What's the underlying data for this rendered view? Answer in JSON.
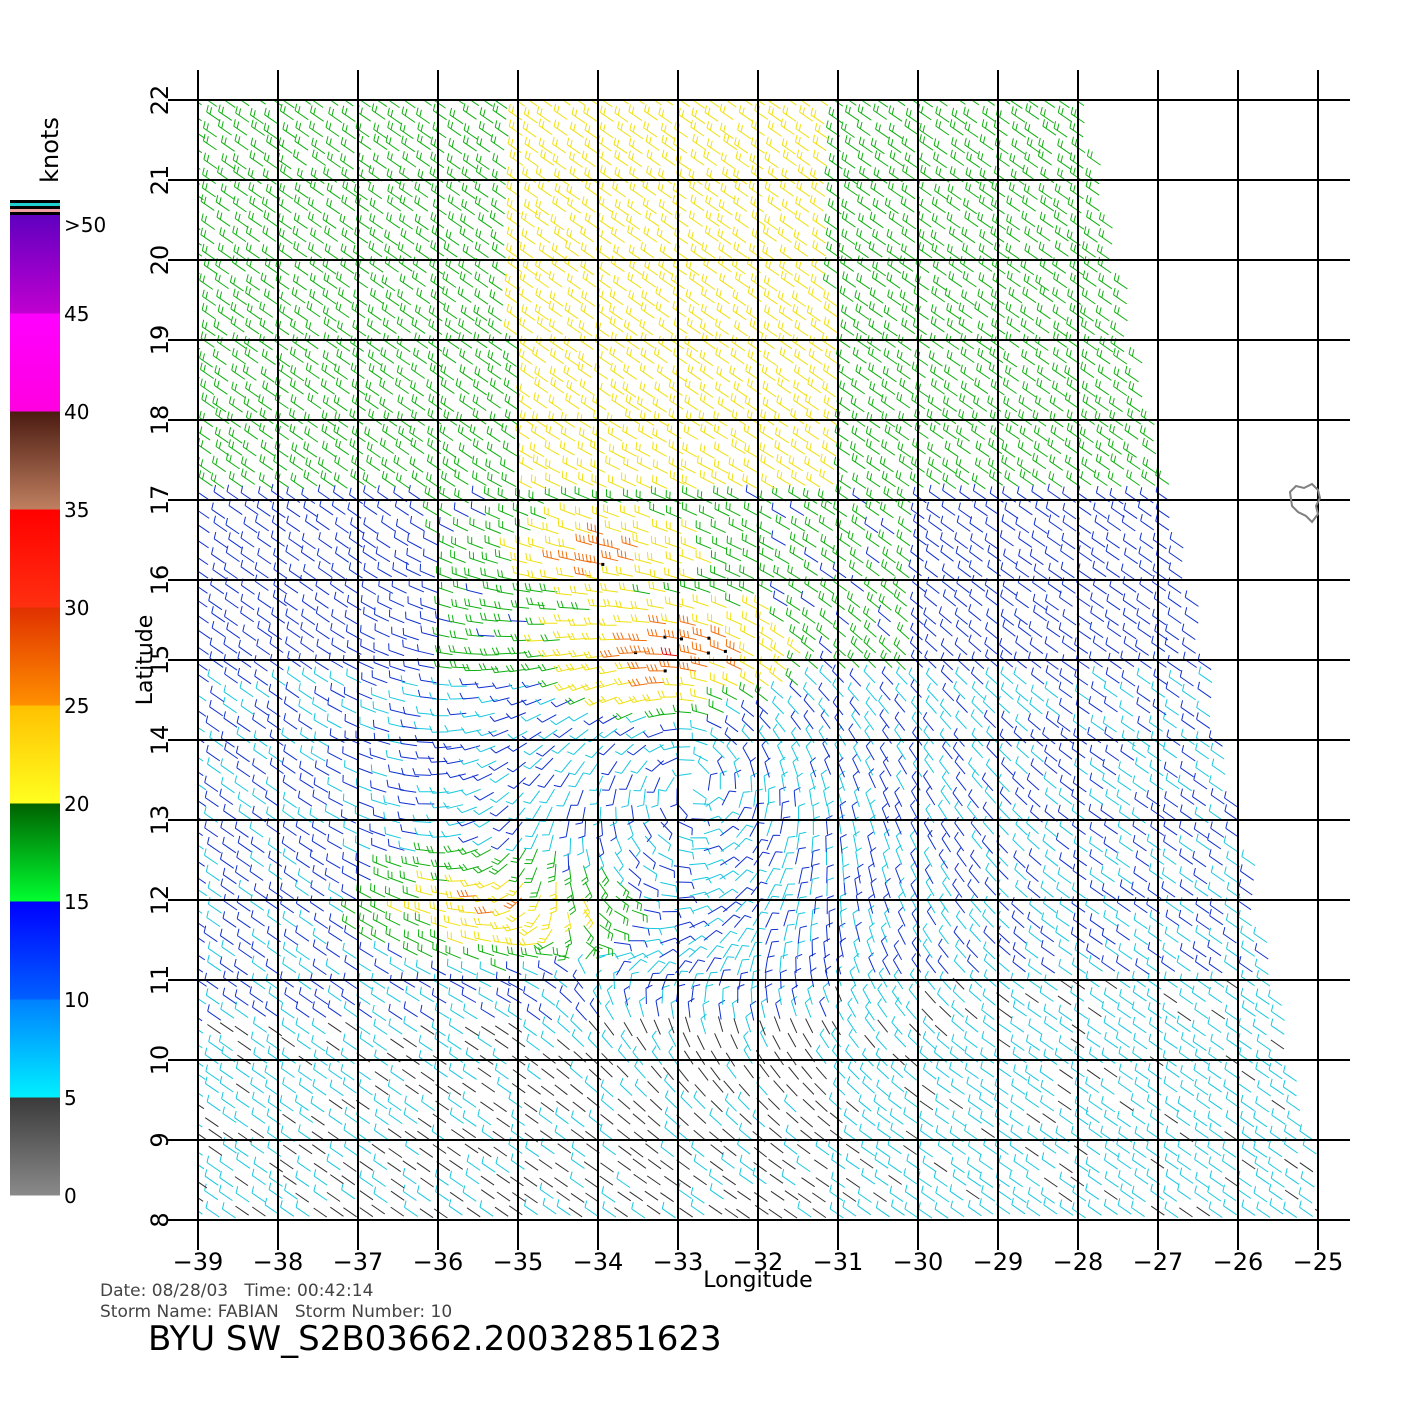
{
  "chart_data": {
    "type": "wind-barb-map",
    "title": "",
    "xlabel": "Longitude",
    "ylabel": "Latitude",
    "xlim": [
      -39,
      -25
    ],
    "ylim": [
      8,
      22
    ],
    "x_ticks": [
      -39,
      -38,
      -37,
      -36,
      -35,
      -34,
      -33,
      -32,
      -31,
      -30,
      -29,
      -28,
      -27,
      -26,
      -25
    ],
    "y_ticks": [
      8,
      9,
      10,
      11,
      12,
      13,
      14,
      15,
      16,
      17,
      18,
      19,
      20,
      21,
      22
    ],
    "grid": true,
    "colorbar": {
      "unit": "knots",
      "labels": [
        ">50",
        "45",
        "40",
        "35",
        "30",
        "25",
        "20",
        "15",
        "10",
        "5",
        "0"
      ],
      "bands": [
        {
          "from": 0,
          "to": 5,
          "color_top": "#3a3a3a",
          "color_bottom": "#8a8a8a"
        },
        {
          "from": 5,
          "to": 10,
          "color_top": "#0080ff",
          "color_bottom": "#00f0ff"
        },
        {
          "from": 10,
          "to": 15,
          "color_top": "#0000ff",
          "color_bottom": "#0060ff"
        },
        {
          "from": 15,
          "to": 20,
          "color_top": "#006000",
          "color_bottom": "#00ff30"
        },
        {
          "from": 20,
          "to": 25,
          "color_top": "#ffc000",
          "color_bottom": "#ffff20"
        },
        {
          "from": 25,
          "to": 30,
          "color_top": "#e03000",
          "color_bottom": "#ff9000"
        },
        {
          "from": 30,
          "to": 35,
          "color_top": "#ff0000",
          "color_bottom": "#ff3010"
        },
        {
          "from": 35,
          "to": 40,
          "color_top": "#4a1a10",
          "color_bottom": "#c08060"
        },
        {
          "from": 40,
          "to": 45,
          "color_top": "#ff00ff",
          "color_bottom": "#ff00e0"
        },
        {
          "from": 45,
          "to": 50,
          "color_top": "#6000c0",
          "color_bottom": "#c000d0"
        }
      ],
      "top_stripes": [
        "#000000",
        "#20d0d0",
        "#000000",
        "#f0a0a0",
        "#000000"
      ]
    },
    "circulation_center": {
      "lon": -32.8,
      "lat": 13.4
    },
    "high_wind_regions": [
      {
        "lon": -33.0,
        "lat": 15.1,
        "speed_kt": 30
      },
      {
        "lon": -35.3,
        "lat": 11.9,
        "speed_kt": 27
      },
      {
        "lon": -33.9,
        "lat": 16.3,
        "speed_kt": 28
      }
    ]
  },
  "footer": {
    "date_line": "Date: 08/28/03   Time: 00:42:14",
    "storm_line": "Storm Name: FABIAN   Storm Number: 10",
    "product_id": "BYU SW_S2B03662.20032851623"
  }
}
